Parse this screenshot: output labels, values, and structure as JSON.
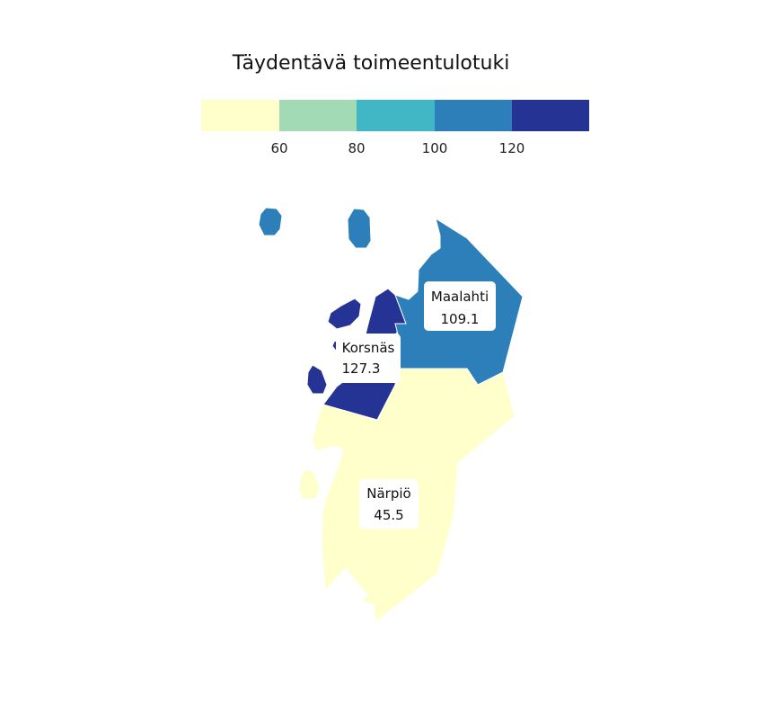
{
  "chart_data": {
    "type": "choropleth",
    "title": "Täydentävä toimeentulotuki",
    "legend": {
      "placement": "top",
      "breaks": [
        60,
        80,
        100,
        120
      ],
      "tick_labels": [
        "60",
        "80",
        "100",
        "120"
      ],
      "colors": [
        "#ffffcc",
        "#a1dab4",
        "#41b6c4",
        "#2c7fb8",
        "#253494"
      ]
    },
    "regions": [
      {
        "name": "Maalahti",
        "value": 109.1,
        "value_label": "109.1",
        "color": "#2c7fb8"
      },
      {
        "name": "Korsnäs",
        "value": 127.3,
        "value_label": "127.3",
        "color": "#253494"
      },
      {
        "name": "Närpiö",
        "value": 45.5,
        "value_label": "45.5",
        "color": "#ffffcc"
      }
    ]
  }
}
